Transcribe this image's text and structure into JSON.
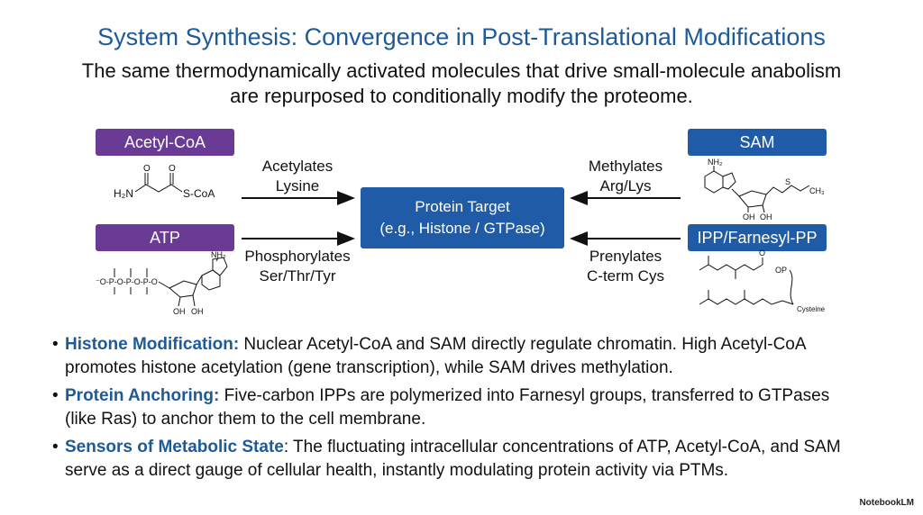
{
  "header": {
    "title": "System Synthesis: Convergence in Post-Translational Modifications",
    "subtitle_lines": [
      "The same thermodynamically activated molecules that drive small-molecule anabolism",
      "are repurposed to conditionally modify the proteome."
    ]
  },
  "donors": {
    "acetyl_coa": {
      "label": "Acetyl-CoA",
      "action": [
        "Acetylates",
        "Lysine"
      ],
      "structure": [
        "O",
        "O",
        "H₂N",
        "S-CoA"
      ]
    },
    "atp": {
      "label": "ATP",
      "action": [
        "Phosphorylates",
        "Ser/Thr/Tyr"
      ],
      "structure": [
        "NH₂",
        "⁻O-P-O-P-O-P-O",
        "OH",
        "OH"
      ]
    },
    "sam": {
      "label": "SAM",
      "action": [
        "Methylates",
        "Arg/Lys"
      ],
      "structure": [
        "NH₂",
        "S",
        "CH₃",
        "OH",
        "OH"
      ]
    },
    "ipp": {
      "label": "IPP/Farnesyl-PP",
      "action": [
        "Prenylates",
        "C-term Cys"
      ],
      "structure": [
        "O",
        "OP",
        "Cysteine"
      ]
    }
  },
  "target": {
    "lines": [
      "Protein Target",
      "(e.g., Histone / GTPase)"
    ]
  },
  "bullets": [
    {
      "heading": "Histone Modification:",
      "text": " Nuclear Acetyl-CoA and SAM directly regulate chromatin. High Acetyl-CoA promotes histone acetylation (gene transcription), while SAM drives methylation."
    },
    {
      "heading": "Protein Anchoring:",
      "text": " Five-carbon IPPs are polymerized into Farnesyl groups, transferred to GTPases (like Ras) to anchor them to the cell membrane."
    },
    {
      "heading": "Sensors of Metabolic State",
      "text": ": The fluctuating intracellular concentrations of ATP, Acetyl-CoA, and SAM serve as a direct gauge of cellular health, instantly modulating protein activity via PTMs."
    }
  ],
  "footer": {
    "brand": "NotebookLM"
  }
}
